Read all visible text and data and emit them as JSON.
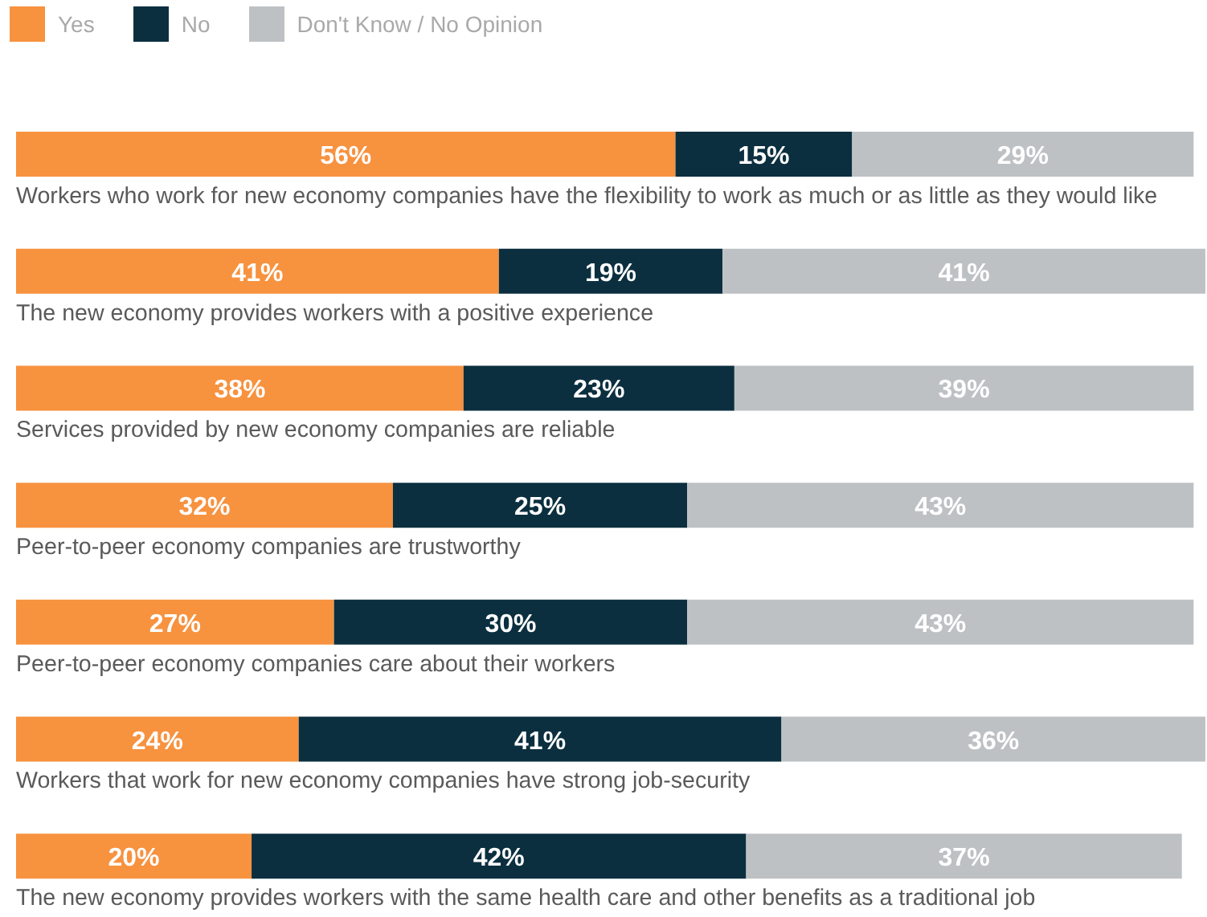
{
  "chart_data": {
    "type": "bar",
    "orientation": "horizontal",
    "stacked": true,
    "legend": "top left",
    "tick_labels": "y",
    "xlim": [
      0,
      101
    ],
    "categories": [
      "Workers who work for new economy companies have the flexibility to work as much or as little as they would like",
      "The new economy provides workers with a positive experience",
      "Services provided by new economy companies are reliable",
      "Peer-to-peer economy companies are trustworthy",
      "Peer-to-peer economy companies care about their workers",
      "Workers that work for new economy companies have strong job-security",
      "The new economy provides workers with the same health care and other benefits as a traditional job"
    ],
    "series": [
      {
        "name": "Yes",
        "color": "#f7923f",
        "values": [
          56,
          41,
          38,
          32,
          27,
          24,
          20
        ],
        "value_labels": [
          "56%",
          "41%",
          "38%",
          "32%",
          "27%",
          "24%",
          "20%"
        ]
      },
      {
        "name": "No",
        "color": "#0b2f3f",
        "values": [
          15,
          19,
          23,
          25,
          30,
          41,
          42
        ],
        "value_labels": [
          "15%",
          "19%",
          "23%",
          "25%",
          "30%",
          "41%",
          "42%"
        ]
      },
      {
        "name": "Don't Know / No Opinion",
        "color": "#bec1c4",
        "values": [
          29,
          41,
          39,
          43,
          43,
          36,
          37
        ],
        "value_labels": [
          "29%",
          "41%",
          "39%",
          "43%",
          "43%",
          "36%",
          "37%"
        ]
      }
    ]
  }
}
